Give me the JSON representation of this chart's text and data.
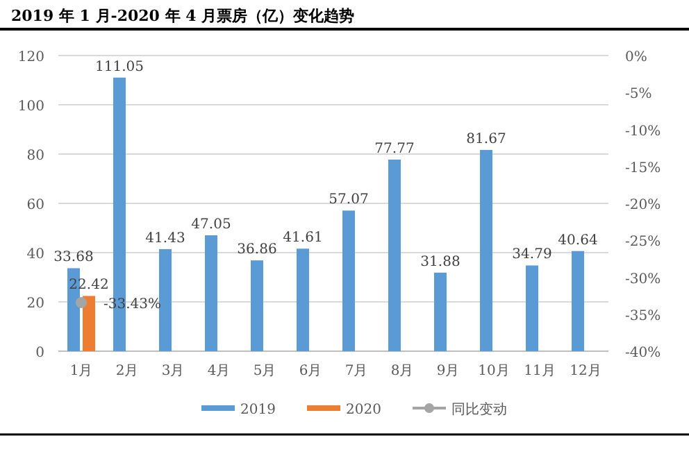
{
  "chart_data": {
    "type": "bar",
    "title": "2019 年 1 月-2020 年 4 月票房（亿）变化趋势",
    "categories": [
      "1月",
      "2月",
      "3月",
      "4月",
      "5月",
      "6月",
      "7月",
      "8月",
      "9月",
      "10月",
      "11月",
      "12月"
    ],
    "series": [
      {
        "name": "2019",
        "color": "#5b9bd5",
        "values": [
          33.68,
          111.05,
          41.43,
          47.05,
          36.86,
          41.61,
          57.07,
          77.77,
          31.88,
          81.67,
          34.79,
          40.64
        ],
        "value_labels": [
          "33.68",
          "111.05",
          "41.43",
          "47.05",
          "36.86",
          "41.61",
          "57.07",
          "77.77",
          "31.88",
          "81.67",
          "34.79",
          "40.64"
        ]
      },
      {
        "name": "2020",
        "color": "#ed7d31",
        "values": [
          22.42,
          null,
          null,
          null,
          null,
          null,
          null,
          null,
          null,
          null,
          null,
          null
        ],
        "value_labels": [
          "22.42",
          null,
          null,
          null,
          null,
          null,
          null,
          null,
          null,
          null,
          null,
          null
        ]
      },
      {
        "name": "同比变动",
        "type": "line",
        "axis": "y2",
        "color": "#a5a5a5",
        "marker": "circle",
        "values": [
          -33.43,
          null,
          null,
          null,
          null,
          null,
          null,
          null,
          null,
          null,
          null,
          null
        ],
        "value_labels": [
          "-33.43%",
          null,
          null,
          null,
          null,
          null,
          null,
          null,
          null,
          null,
          null,
          null
        ]
      }
    ],
    "ylim": [
      0,
      120
    ],
    "yticks": [
      0,
      20,
      40,
      60,
      80,
      100,
      120
    ],
    "y2lim": [
      -40,
      0
    ],
    "y2ticks": [
      {
        "value": 0,
        "label": "0%"
      },
      {
        "value": -5,
        "label": "-5%"
      },
      {
        "value": -10,
        "label": "-10%"
      },
      {
        "value": -15,
        "label": "-15%"
      },
      {
        "value": -20,
        "label": "-20%"
      },
      {
        "value": -25,
        "label": "-25%"
      },
      {
        "value": -30,
        "label": "-30%"
      },
      {
        "value": -35,
        "label": "-35%"
      },
      {
        "value": -40,
        "label": "-40%"
      }
    ],
    "grid": "y",
    "legend": "bottom"
  }
}
